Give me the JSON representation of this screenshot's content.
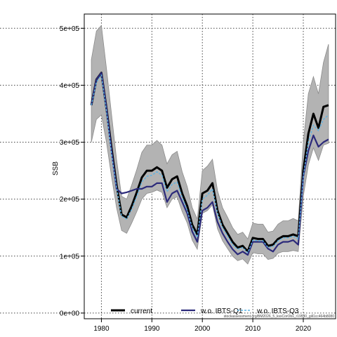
{
  "chart_data": {
    "type": "line",
    "title": "",
    "xlabel": "",
    "ylabel": "SSB",
    "xlim": [
      1976.6,
      2026.4
    ],
    "ylim": [
      -10000,
      525000
    ],
    "x_ticks": [
      1980,
      1990,
      2000,
      2010,
      2020
    ],
    "y_ticks": [
      0,
      100000,
      200000,
      300000,
      400000,
      500000
    ],
    "y_tick_labels": [
      "0e+00",
      "1e+05",
      "2e+05",
      "3e+05",
      "4e+05",
      "5e+05"
    ],
    "grid": true,
    "legend_position": "bottom",
    "footnote": "stockassessment.org/BM2026_5_ksxCorObs_r19530_gill1cc464b8080",
    "x": [
      1978,
      1979,
      1980,
      1981,
      1982,
      1983,
      1984,
      1985,
      1986,
      1987,
      1988,
      1989,
      1990,
      1991,
      1992,
      1993,
      1994,
      1995,
      1996,
      1997,
      1998,
      1999,
      2000,
      2001,
      2002,
      2003,
      2004,
      2005,
      2006,
      2007,
      2008,
      2009,
      2010,
      2011,
      2012,
      2013,
      2014,
      2015,
      2016,
      2017,
      2018,
      2019,
      2020,
      2021,
      2022,
      2023,
      2024,
      2025
    ],
    "series": [
      {
        "name": "current",
        "color": "#000000",
        "style": "solid",
        "values": [
          365000,
          410000,
          422000,
          360000,
          290000,
          225000,
          173000,
          168000,
          188000,
          212000,
          238000,
          250000,
          250000,
          256000,
          250000,
          220000,
          235000,
          240000,
          210000,
          188000,
          155000,
          138000,
          210000,
          215000,
          228000,
          180000,
          155000,
          140000,
          125000,
          115000,
          118000,
          108000,
          132000,
          130000,
          130000,
          118000,
          120000,
          130000,
          135000,
          135000,
          138000,
          135000,
          250000,
          315000,
          350000,
          325000,
          362000,
          365000
        ],
        "ci_low": [
          300000,
          340000,
          348000,
          300000,
          240000,
          185000,
          145000,
          140000,
          158000,
          178000,
          200000,
          210000,
          212000,
          216000,
          212000,
          185000,
          200000,
          204000,
          178000,
          158000,
          128000,
          112000,
          175000,
          180000,
          190000,
          148000,
          127000,
          113000,
          100000,
          92000,
          95000,
          86000,
          106000,
          104000,
          104000,
          94000,
          96000,
          105000,
          108000,
          108000,
          110000,
          108000,
          205000,
          260000,
          290000,
          268000,
          295000,
          298000
        ],
        "ci_high": [
          445000,
          495000,
          505000,
          430000,
          350000,
          270000,
          205000,
          200000,
          225000,
          252000,
          282000,
          295000,
          295000,
          303000,
          295000,
          262000,
          278000,
          284000,
          248000,
          222000,
          185000,
          165000,
          250000,
          258000,
          270000,
          215000,
          185000,
          168000,
          150000,
          138000,
          142000,
          130000,
          158000,
          156000,
          156000,
          142000,
          144000,
          156000,
          162000,
          162000,
          166000,
          162000,
          300000,
          385000,
          415000,
          385000,
          440000,
          472000
        ]
      },
      {
        "name": "w.o. IBTS-Q1",
        "color": "#2c2a7a",
        "style": "solid",
        "values": [
          365000,
          410000,
          422000,
          360000,
          285000,
          218000,
          210000,
          212000,
          215000,
          218000,
          218000,
          222000,
          222000,
          228000,
          228000,
          195000,
          210000,
          215000,
          195000,
          175000,
          143000,
          125000,
          180000,
          185000,
          195000,
          160000,
          140000,
          125000,
          112000,
          103000,
          108000,
          102000,
          125000,
          125000,
          125000,
          113000,
          108000,
          120000,
          125000,
          125000,
          128000,
          120000,
          240000,
          285000,
          312000,
          292000,
          300000,
          305000
        ]
      },
      {
        "name": "w.o. IBTS-Q3",
        "color": "#5ab4e6",
        "style": "dashed",
        "values": [
          365000,
          405000,
          418000,
          355000,
          280000,
          220000,
          170000,
          165000,
          182000,
          205000,
          230000,
          240000,
          242000,
          248000,
          242000,
          213000,
          226000,
          230000,
          203000,
          180000,
          150000,
          133000,
          200000,
          207000,
          218000,
          175000,
          150000,
          135000,
          120000,
          112000,
          115000,
          106000,
          128000,
          127000,
          127000,
          115000,
          117000,
          127000,
          132000,
          132000,
          135000,
          130000,
          240000,
          300000,
          330000,
          320000,
          340000,
          348000
        ]
      }
    ]
  }
}
